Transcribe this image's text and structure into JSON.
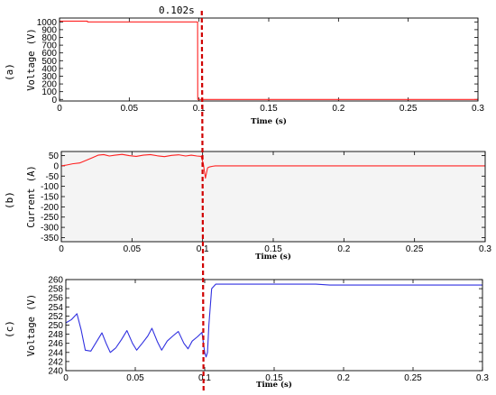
{
  "annotation": {
    "label": "0.102s",
    "x": 0.102,
    "color": "#d00000"
  },
  "chart_data": [
    {
      "type": "line",
      "panel_label": "(a)",
      "xlabel": "Time (s)",
      "ylabel": "Voltage (V)",
      "xlim": [
        0,
        0.3
      ],
      "ylim": [
        -20,
        1050
      ],
      "xticks": [
        0,
        0.05,
        0.1,
        0.15,
        0.2,
        0.25,
        0.3
      ],
      "xtick_labels": [
        "0",
        "0.05",
        "0.1",
        "0.15",
        "0.2",
        "0.25",
        "0.3"
      ],
      "yticks": [
        0,
        100,
        200,
        300,
        400,
        500,
        600,
        700,
        800,
        900,
        1000
      ],
      "background": "#ffffff",
      "series": [
        {
          "color": "#ff2020",
          "x": [
            0,
            0.02,
            0.0201,
            0.0989,
            0.099,
            0.0991,
            0.3
          ],
          "y": [
            1010,
            1010,
            1000,
            1000,
            1000,
            0,
            0
          ]
        }
      ]
    },
    {
      "type": "line",
      "panel_label": "(b)",
      "xlabel": "Time (s)",
      "ylabel": "Current (A)",
      "xlim": [
        0,
        0.3
      ],
      "ylim": [
        -370,
        70
      ],
      "xticks": [
        0,
        0.05,
        0.1,
        0.15,
        0.2,
        0.25,
        0.3
      ],
      "xtick_labels": [
        "0",
        "0.05",
        "0.1",
        "0.15",
        "0.2",
        "0.25",
        "0.3"
      ],
      "yticks": [
        50,
        0,
        -50,
        -100,
        -150,
        -200,
        -250,
        -300,
        -350
      ],
      "background": "#f4f4f4",
      "series": [
        {
          "color": "#ff2020",
          "x": [
            0,
            0.003,
            0.008,
            0.013,
            0.018,
            0.022,
            0.026,
            0.03,
            0.034,
            0.038,
            0.043,
            0.048,
            0.053,
            0.058,
            0.063,
            0.068,
            0.073,
            0.078,
            0.083,
            0.088,
            0.092,
            0.096,
            0.099,
            0.1005,
            0.102,
            0.1035,
            0.105,
            0.107,
            0.109,
            0.3
          ],
          "y": [
            0,
            3,
            10,
            14,
            28,
            40,
            52,
            55,
            48,
            52,
            56,
            50,
            46,
            52,
            55,
            49,
            45,
            51,
            54,
            48,
            52,
            48,
            46,
            10,
            -60,
            -10,
            -5,
            -2,
            0,
            0
          ]
        }
      ]
    },
    {
      "type": "line",
      "panel_label": "(c)",
      "xlabel": "Time (s)",
      "ylabel": "Voltage (V)",
      "xlim": [
        0,
        0.3
      ],
      "ylim": [
        240,
        260
      ],
      "xticks": [
        0,
        0.05,
        0.1,
        0.15,
        0.2,
        0.25,
        0.3
      ],
      "xtick_labels": [
        "0",
        "0.05",
        "0.1",
        "0.15",
        "0.2",
        "0.25",
        "0.3"
      ],
      "yticks": [
        240,
        242,
        244,
        246,
        248,
        250,
        252,
        254,
        256,
        258,
        260
      ],
      "background": "#ffffff",
      "series": [
        {
          "color": "#3030e0",
          "x": [
            0,
            0.004,
            0.008,
            0.011,
            0.014,
            0.018,
            0.022,
            0.026,
            0.029,
            0.032,
            0.036,
            0.04,
            0.044,
            0.048,
            0.051,
            0.055,
            0.059,
            0.062,
            0.066,
            0.069,
            0.073,
            0.077,
            0.081,
            0.085,
            0.088,
            0.091,
            0.095,
            0.098,
            0.1,
            0.101,
            0.102,
            0.103,
            0.105,
            0.108,
            0.12,
            0.18,
            0.19,
            0.3
          ],
          "y": [
            250.5,
            251.2,
            252.5,
            249,
            244.5,
            244.3,
            246.3,
            248.3,
            246,
            244,
            245,
            246.8,
            248.8,
            246,
            244.5,
            246,
            247.6,
            249.3,
            246.3,
            244.5,
            246.5,
            247.6,
            248.6,
            246,
            244.8,
            246.5,
            247.5,
            248.4,
            244,
            243,
            244,
            250,
            258,
            259,
            259,
            259,
            258.8,
            258.8
          ]
        }
      ]
    }
  ]
}
